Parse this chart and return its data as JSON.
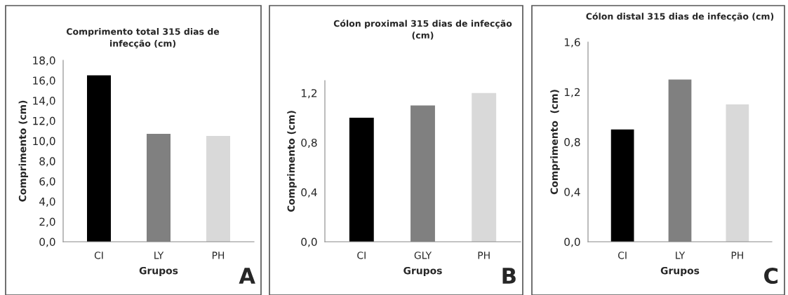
{
  "chart_data": [
    {
      "type": "bar",
      "title": "Comprimento total 315 dias de\ninfecção (cm)",
      "xlabel": "Grupos",
      "ylabel": "Comprimento (cm)",
      "categories": [
        "CI",
        "LY",
        "PH"
      ],
      "values": [
        16.5,
        10.7,
        10.5
      ],
      "colors": [
        "#000000",
        "#808080",
        "#d9d9d9"
      ],
      "ylim": [
        0,
        18
      ],
      "yticks": [
        {
          "value": 0,
          "label": "0,0"
        },
        {
          "value": 2,
          "label": "2,0"
        },
        {
          "value": 4,
          "label": "4,0"
        },
        {
          "value": 6,
          "label": "6,0"
        },
        {
          "value": 8,
          "label": "8,0"
        },
        {
          "value": 10,
          "label": "10,0"
        },
        {
          "value": 12,
          "label": "12,0"
        },
        {
          "value": 14,
          "label": "14,0"
        },
        {
          "value": 16,
          "label": "16,0"
        },
        {
          "value": 18,
          "label": "18,0"
        }
      ],
      "annotations": [
        "A"
      ]
    },
    {
      "type": "bar",
      "title": "Cólon proximal 315 dias de infecção\n(cm)",
      "xlabel": "Grupos",
      "ylabel": "Comprimento (cm)",
      "categories": [
        "CI",
        "GLY",
        "PH"
      ],
      "values": [
        1.0,
        1.1,
        1.2
      ],
      "colors": [
        "#000000",
        "#808080",
        "#d9d9d9"
      ],
      "ylim": [
        0,
        1.3
      ],
      "yticks": [
        {
          "value": 0,
          "label": "0,0"
        },
        {
          "value": 0.4,
          "label": "0,4"
        },
        {
          "value": 0.8,
          "label": "0,8"
        },
        {
          "value": 1.2,
          "label": "1,2"
        }
      ],
      "annotations": [
        "B"
      ]
    },
    {
      "type": "bar",
      "title": "Cólon distal 315 dias de infecção (cm)",
      "xlabel": "Grupos",
      "ylabel": "Comprimento  (cm)",
      "categories": [
        "CI",
        "LY",
        "PH"
      ],
      "values": [
        0.9,
        1.3,
        1.1
      ],
      "colors": [
        "#000000",
        "#808080",
        "#d9d9d9"
      ],
      "ylim": [
        0,
        1.6
      ],
      "yticks": [
        {
          "value": 0,
          "label": "0,0"
        },
        {
          "value": 0.4,
          "label": "0,4"
        },
        {
          "value": 0.8,
          "label": "0,8"
        },
        {
          "value": 1.2,
          "label": "1,2"
        },
        {
          "value": 1.6,
          "label": "1,6"
        }
      ],
      "annotations": [
        "C"
      ]
    }
  ]
}
